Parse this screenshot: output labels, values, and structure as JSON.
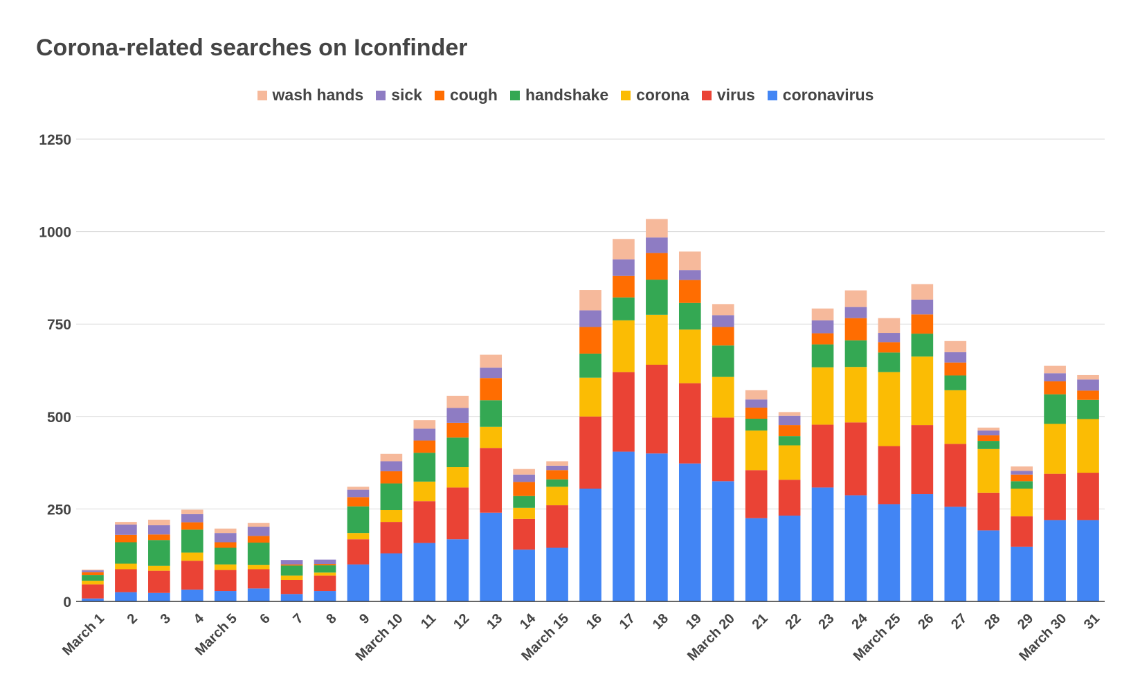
{
  "chart_data": {
    "type": "bar",
    "stacked": true,
    "title": "Corona-related searches on Iconfinder",
    "xlabel": "",
    "ylabel": "",
    "ylim": [
      0,
      1250
    ],
    "yticks": [
      0,
      250,
      500,
      750,
      1000,
      1250
    ],
    "grid": true,
    "legend_position": "top",
    "categories": [
      "March 1",
      "2",
      "3",
      "4",
      "March 5",
      "6",
      "7",
      "8",
      "9",
      "March 10",
      "11",
      "12",
      "13",
      "14",
      "March 15",
      "16",
      "17",
      "18",
      "19",
      "March 20",
      "21",
      "22",
      "23",
      "24",
      "March 25",
      "26",
      "27",
      "28",
      "29",
      "March 30",
      "31"
    ],
    "series": [
      {
        "name": "coronavirus",
        "color": "#4285F4",
        "values": [
          8,
          25,
          23,
          32,
          28,
          35,
          20,
          28,
          100,
          130,
          158,
          168,
          240,
          140,
          145,
          305,
          405,
          400,
          373,
          325,
          225,
          232,
          308,
          287,
          263,
          290,
          256,
          192,
          148,
          220,
          220
        ]
      },
      {
        "name": "virus",
        "color": "#EA4335",
        "values": [
          38,
          62,
          60,
          78,
          57,
          52,
          38,
          42,
          68,
          85,
          113,
          140,
          175,
          83,
          115,
          195,
          215,
          240,
          217,
          172,
          130,
          97,
          170,
          197,
          157,
          187,
          170,
          102,
          82,
          125,
          128
        ]
      },
      {
        "name": "corona",
        "color": "#FBBC04",
        "values": [
          10,
          15,
          13,
          22,
          15,
          12,
          12,
          8,
          17,
          32,
          53,
          55,
          57,
          30,
          50,
          105,
          140,
          135,
          145,
          110,
          107,
          93,
          155,
          150,
          200,
          185,
          145,
          118,
          75,
          135,
          145
        ]
      },
      {
        "name": "handshake",
        "color": "#34A853",
        "values": [
          15,
          58,
          70,
          62,
          45,
          60,
          27,
          20,
          72,
          72,
          78,
          80,
          72,
          32,
          20,
          65,
          62,
          95,
          72,
          85,
          32,
          25,
          62,
          72,
          53,
          62,
          40,
          22,
          20,
          80,
          52
        ]
      },
      {
        "name": "cough",
        "color": "#FF6D01",
        "values": [
          8,
          20,
          15,
          20,
          15,
          18,
          3,
          3,
          25,
          33,
          33,
          40,
          60,
          38,
          25,
          72,
          58,
          72,
          62,
          50,
          30,
          30,
          30,
          60,
          28,
          52,
          35,
          15,
          18,
          35,
          25
        ]
      },
      {
        "name": "sick",
        "color": "#8E7CC3",
        "values": [
          5,
          28,
          25,
          22,
          25,
          25,
          12,
          12,
          20,
          27,
          32,
          40,
          28,
          20,
          12,
          45,
          45,
          42,
          27,
          32,
          22,
          25,
          35,
          30,
          25,
          40,
          28,
          13,
          10,
          22,
          30
        ]
      },
      {
        "name": "wash hands",
        "color": "#F6B99B",
        "values": [
          2,
          7,
          15,
          12,
          12,
          10,
          0,
          0,
          8,
          20,
          23,
          33,
          35,
          15,
          12,
          55,
          55,
          50,
          50,
          30,
          25,
          10,
          32,
          45,
          40,
          42,
          30,
          8,
          12,
          20,
          12
        ]
      }
    ]
  }
}
